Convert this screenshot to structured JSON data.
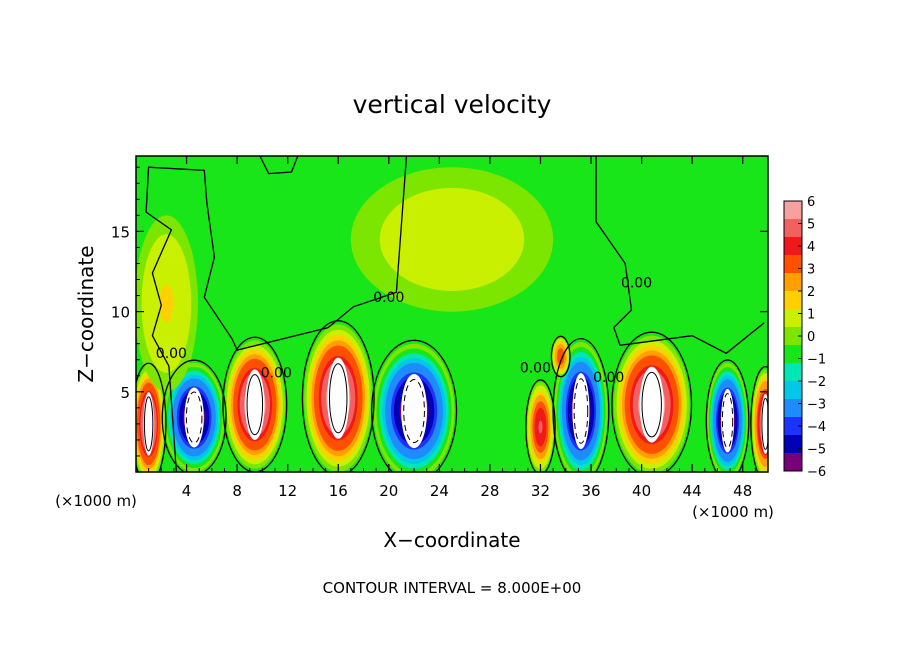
{
  "chart_data": {
    "type": "heatmap",
    "title": "vertical velocity",
    "xlabel": "X−coordinate",
    "ylabel": "Z−coordinate",
    "x_unit_left": "(×1000 m)",
    "x_unit_right": "(×1000 m)",
    "footer": "CONTOUR INTERVAL = 8.000E+00",
    "xlim": [
      0,
      50
    ],
    "ylim": [
      0,
      19.7
    ],
    "xticks": [
      4,
      8,
      12,
      16,
      20,
      24,
      28,
      32,
      36,
      40,
      44,
      48
    ],
    "yticks": [
      5,
      10,
      15
    ],
    "contour_labels": [
      {
        "text": "0.00",
        "x": 20,
        "y": 10.6
      },
      {
        "text": "0.00",
        "x": 2.8,
        "y": 7.1
      },
      {
        "text": "0.00",
        "x": 11.1,
        "y": 5.9
      },
      {
        "text": "0.00",
        "x": 31.6,
        "y": 6.2
      },
      {
        "text": "0.00",
        "x": 37.4,
        "y": 5.6
      },
      {
        "text": "0.00",
        "x": 39.6,
        "y": 11.5
      }
    ],
    "colorbar": {
      "min": -6,
      "max": 6,
      "tick_labels": [
        "6",
        "5",
        "4",
        "3",
        "2",
        "1",
        "0",
        "−1",
        "−2",
        "−3",
        "−4",
        "−5",
        "−6"
      ],
      "colors": [
        "#f6a0a0",
        "#f26060",
        "#f01818",
        "#ff5000",
        "#ffa000",
        "#ffd000",
        "#c8f000",
        "#7de600",
        "#19e619",
        "#00e6b4",
        "#00c8e6",
        "#1e8cff",
        "#1e32ff",
        "#0000b4",
        "#780078"
      ]
    },
    "cells": [
      {
        "x": 1.0,
        "z": 3.0,
        "rx": 1.3,
        "rz": 3.6,
        "w": 6
      },
      {
        "x": 4.6,
        "z": 3.4,
        "rx": 2.4,
        "rz": 3.4,
        "w": -6
      },
      {
        "x": 9.4,
        "z": 4.2,
        "rx": 2.4,
        "rz": 4.0,
        "w": 6
      },
      {
        "x": 16.0,
        "z": 4.6,
        "rx": 2.7,
        "rz": 4.6,
        "w": 6
      },
      {
        "x": 22.0,
        "z": 3.8,
        "rx": 3.2,
        "rz": 4.2,
        "w": -6
      },
      {
        "x": 32.0,
        "z": 2.8,
        "rx": 1.1,
        "rz": 2.8,
        "w": 4.5
      },
      {
        "x": 35.2,
        "z": 3.8,
        "rx": 2.1,
        "rz": 4.3,
        "w": -6
      },
      {
        "x": 40.8,
        "z": 4.2,
        "rx": 3.0,
        "rz": 4.3,
        "w": 6
      },
      {
        "x": 46.8,
        "z": 3.2,
        "rx": 1.6,
        "rz": 3.6,
        "w": -6
      },
      {
        "x": 49.8,
        "z": 3.0,
        "rx": 1.1,
        "rz": 3.4,
        "w": 5.5
      },
      {
        "x": 33.6,
        "z": 7.2,
        "rx": 0.7,
        "rz": 1.2,
        "w": 3.5
      },
      {
        "x": 2.4,
        "z": 10.5,
        "rx": 2.5,
        "rz": 5.5,
        "w": 1.3
      },
      {
        "x": 25.0,
        "z": 14.5,
        "rx": 8.0,
        "rz": 4.5,
        "w": 0.9
      }
    ]
  }
}
